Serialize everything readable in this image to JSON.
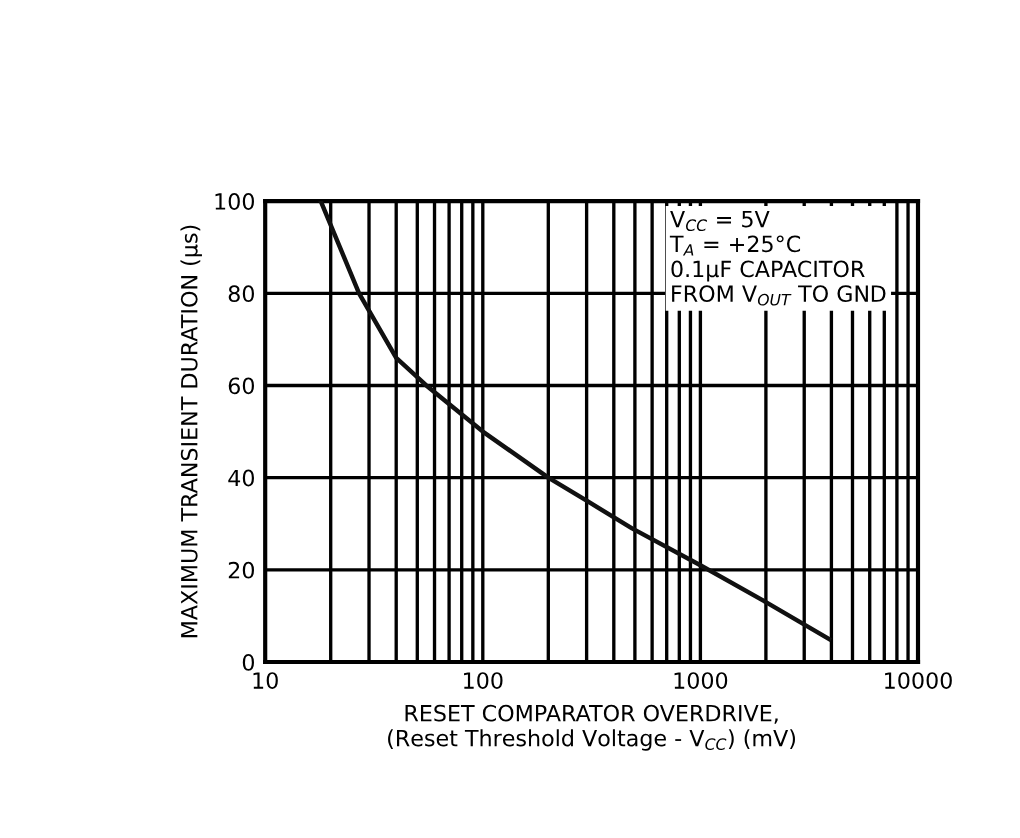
{
  "chart_data": {
    "type": "line",
    "xlabel": "RESET COMPARATOR OVERDRIVE,\n(Reset Threshold Voltage - V$_{CC}$) (mV)",
    "ylabel": "MAXIMUM TRANSIENT DURATION (µs)",
    "log": "x",
    "xlim": [
      10,
      10000
    ],
    "xticks": [
      10,
      100,
      1000,
      10000
    ],
    "ylim": [
      0,
      100
    ],
    "yticks": [
      0,
      20,
      40,
      60,
      80,
      100
    ],
    "grid": true,
    "series": [
      {
        "color": "#111111",
        "x": [
          18,
          27,
          40,
          55,
          100,
          200,
          300,
          485,
          1000,
          2000,
          3900
        ],
        "values": [
          100,
          80,
          66,
          60,
          50,
          40,
          35,
          29,
          21,
          13,
          5
        ]
      }
    ],
    "annotations": [
      "V$_{CC}$ = 5V\nT$_{A}$ = +25°C\n0.1µF CAPACITOR\nFROM V$_{OUT}$ TO GND"
    ]
  }
}
